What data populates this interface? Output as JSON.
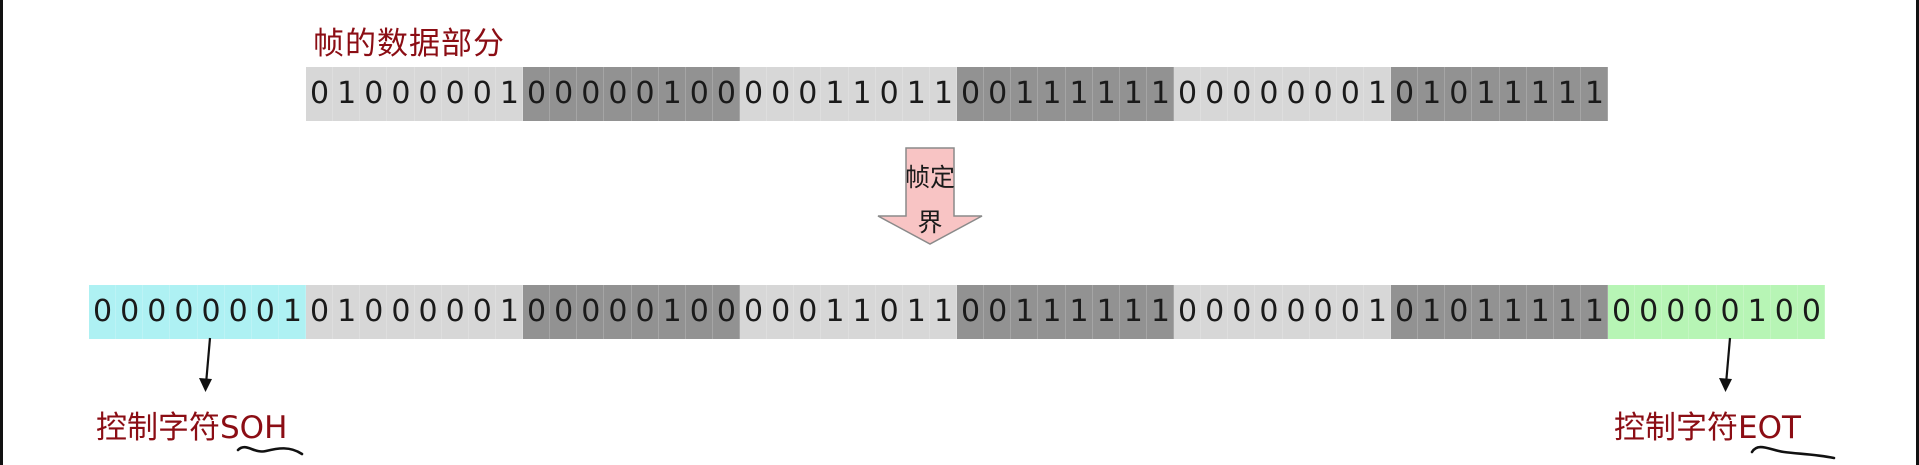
{
  "title": "帧的数据部分",
  "colors": {
    "light": "#d7d7d7",
    "dark": "#929292",
    "soh": "#aef1f3",
    "eot": "#b7f5b5",
    "label_red": "#8b0d14",
    "arrow_fill": "#f8c4c4",
    "arrow_stroke": "#8a8a8a"
  },
  "frame_data": [
    "01000001",
    "00000100",
    "00011011",
    "00111111",
    "00000001",
    "01011111"
  ],
  "framed": [
    "00000001",
    "01000001",
    "00000100",
    "00011011",
    "00111111",
    "00000001",
    "01011111",
    "00000100"
  ],
  "arrow_label_line1": "帧定",
  "arrow_label_line2": "界",
  "soh_label": "控制字符SOH",
  "eot_label": "控制字符EOT"
}
